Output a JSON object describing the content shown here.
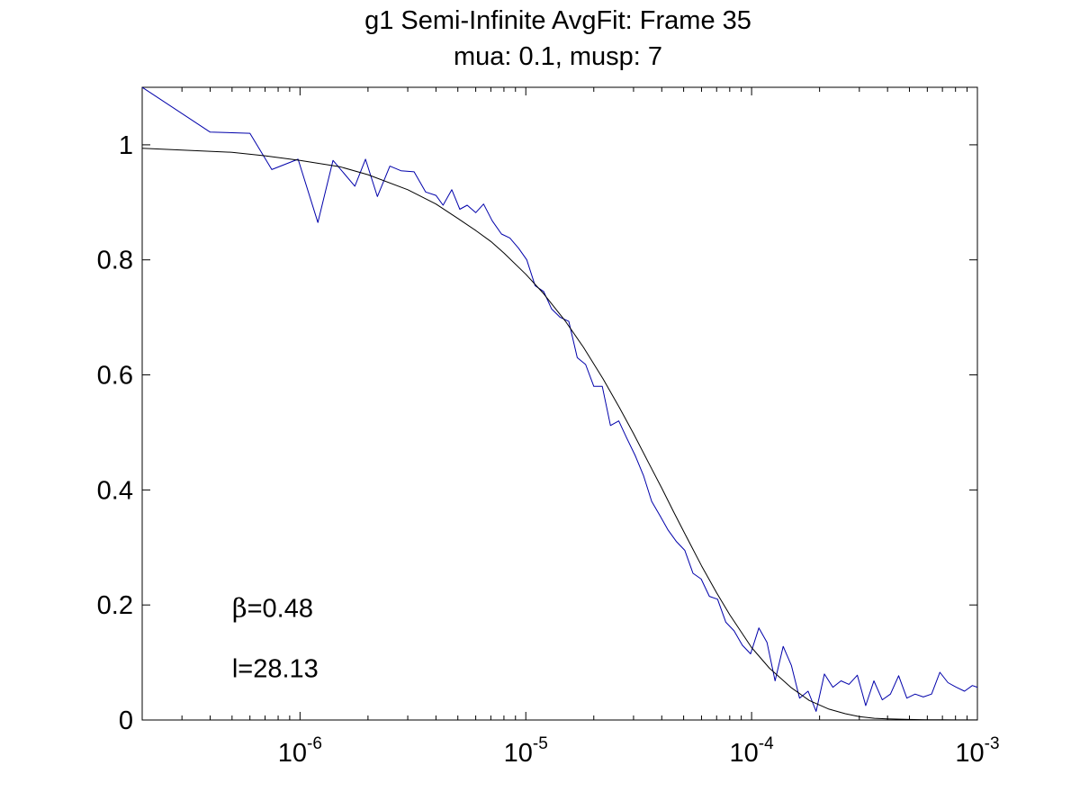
{
  "chart_data": {
    "type": "line",
    "title": "g1 Semi-Infinite AvgFit: Frame 35",
    "subtitle": "mua: 0.1, musp: 7",
    "xlabel": "",
    "ylabel": "",
    "xscale": "log",
    "xlim": [
      2e-07,
      0.001
    ],
    "ylim": [
      0,
      1.1
    ],
    "grid": false,
    "legend": "none",
    "x_ticks": [
      {
        "base": "10",
        "exp": "-6",
        "value": 1e-06
      },
      {
        "base": "10",
        "exp": "-5",
        "value": 1e-05
      },
      {
        "base": "10",
        "exp": "-4",
        "value": 0.0001
      },
      {
        "base": "10",
        "exp": "-3",
        "value": 0.001
      }
    ],
    "y_ticks": [
      {
        "label": "0",
        "value": 0
      },
      {
        "label": "0.2",
        "value": 0.2
      },
      {
        "label": "0.4",
        "value": 0.4
      },
      {
        "label": "0.6",
        "value": 0.6
      },
      {
        "label": "0.8",
        "value": 0.8
      },
      {
        "label": "1",
        "value": 1.0
      }
    ],
    "annotations": [
      {
        "greek": "β",
        "text": "=0.48",
        "x": 5e-07,
        "y": 0.195
      },
      {
        "greek": "",
        "text": "l=28.13",
        "x": 5e-07,
        "y": 0.09
      }
    ],
    "series": [
      {
        "color": "#0000aa",
        "style": "data",
        "x": [
          2e-07,
          4e-07,
          6e-07,
          7.5e-07,
          9.8e-07,
          1.2e-06,
          1.4e-06,
          1.75e-06,
          1.95e-06,
          2.2e-06,
          2.5e-06,
          2.8e-06,
          3.2e-06,
          3.6e-06,
          4e-06,
          4.3e-06,
          4.7e-06,
          5.1e-06,
          5.5e-06,
          6e-06,
          6.5e-06,
          7.1e-06,
          7.8e-06,
          8.5e-06,
          9.3e-06,
          1.01e-05,
          1.1e-05,
          1.2e-05,
          1.3e-05,
          1.42e-05,
          1.55e-05,
          1.69e-05,
          1.84e-05,
          2e-05,
          2.18e-05,
          2.37e-05,
          2.58e-05,
          2.8e-05,
          3.05e-05,
          3.32e-05,
          3.61e-05,
          3.93e-05,
          4.27e-05,
          4.65e-05,
          5.06e-05,
          5.5e-05,
          5.98e-05,
          6.5e-05,
          7.07e-05,
          7.69e-05,
          8.36e-05,
          9.1e-05,
          9.9e-05,
          0.0001077,
          0.000117,
          0.000127,
          0.000138,
          0.00015,
          0.000163,
          0.000178,
          0.000193,
          0.00021,
          0.000229,
          0.000249,
          0.00027,
          0.000294,
          0.00032,
          0.000348,
          0.000379,
          0.000412,
          0.000448,
          0.000487,
          0.00053,
          0.000576,
          0.000627,
          0.000682,
          0.000741,
          0.000806,
          0.000877,
          0.00095,
          0.001
        ],
        "y": [
          1.1,
          1.022,
          1.02,
          0.957,
          0.975,
          0.865,
          0.973,
          0.928,
          0.975,
          0.91,
          0.963,
          0.955,
          0.953,
          0.918,
          0.912,
          0.895,
          0.922,
          0.888,
          0.895,
          0.882,
          0.897,
          0.868,
          0.845,
          0.838,
          0.82,
          0.8,
          0.755,
          0.745,
          0.715,
          0.7,
          0.693,
          0.63,
          0.618,
          0.58,
          0.58,
          0.512,
          0.52,
          0.49,
          0.46,
          0.425,
          0.38,
          0.355,
          0.33,
          0.31,
          0.295,
          0.255,
          0.245,
          0.215,
          0.21,
          0.17,
          0.155,
          0.13,
          0.115,
          0.16,
          0.135,
          0.068,
          0.128,
          0.095,
          0.038,
          0.05,
          0.015,
          0.08,
          0.057,
          0.068,
          0.062,
          0.078,
          0.025,
          0.068,
          0.035,
          0.045,
          0.077,
          0.038,
          0.045,
          0.04,
          0.045,
          0.083,
          0.065,
          0.057,
          0.05,
          0.06,
          0.057
        ]
      },
      {
        "color": "#000000",
        "style": "fit",
        "x": [
          2e-07,
          3e-07,
          5e-07,
          7e-07,
          1e-06,
          1.5e-06,
          2e-06,
          3e-06,
          4e-06,
          5e-06,
          6e-06,
          7e-06,
          8e-06,
          1e-05,
          1.2e-05,
          1.5e-05,
          1.8e-05,
          2.2e-05,
          2.6e-05,
          3e-05,
          3.5e-05,
          4e-05,
          4.5e-05,
          5e-05,
          6e-05,
          7e-05,
          8e-05,
          0.0001,
          0.00012,
          0.00015,
          0.00018,
          0.00022,
          0.00026,
          0.0003,
          0.00035,
          0.0004,
          0.0005,
          0.0006,
          0.0007,
          0.0008,
          0.001
        ],
        "y": [
          0.994,
          0.991,
          0.987,
          0.981,
          0.973,
          0.962,
          0.948,
          0.922,
          0.897,
          0.872,
          0.851,
          0.832,
          0.812,
          0.775,
          0.741,
          0.693,
          0.648,
          0.593,
          0.543,
          0.498,
          0.447,
          0.403,
          0.363,
          0.328,
          0.268,
          0.221,
          0.183,
          0.126,
          0.09,
          0.056,
          0.034,
          0.019,
          0.011,
          0.006,
          0.003,
          0.002,
          0.001,
          0.0005,
          0.0003,
          0.0002,
          0.0001
        ]
      }
    ]
  }
}
